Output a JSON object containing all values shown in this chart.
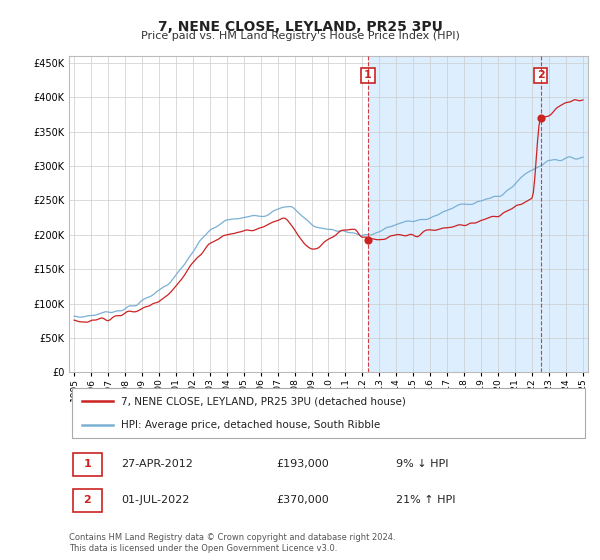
{
  "title": "7, NENE CLOSE, LEYLAND, PR25 3PU",
  "subtitle": "Price paid vs. HM Land Registry's House Price Index (HPI)",
  "ytick_vals": [
    0,
    50000,
    100000,
    150000,
    200000,
    250000,
    300000,
    350000,
    400000,
    450000
  ],
  "ylim": [
    0,
    460000
  ],
  "year_start": 1995,
  "year_end": 2025,
  "hpi_color": "#7ab0d4",
  "price_color": "#cc2222",
  "annotation_box_color": "#cc2222",
  "sale1_date_num": 2012.32,
  "sale1_price": 193000,
  "sale2_date_num": 2022.5,
  "sale2_price": 370000,
  "legend_label_price": "7, NENE CLOSE, LEYLAND, PR25 3PU (detached house)",
  "legend_label_hpi": "HPI: Average price, detached house, South Ribble",
  "table_row1": [
    "1",
    "27-APR-2012",
    "£193,000",
    "9% ↓ HPI"
  ],
  "table_row2": [
    "2",
    "01-JUL-2022",
    "£370,000",
    "21% ↑ HPI"
  ],
  "footnote1": "Contains HM Land Registry data © Crown copyright and database right 2024.",
  "footnote2": "This data is licensed under the Open Government Licence v3.0.",
  "plot_bg": "#ffffff",
  "shade_bg": "#ddeeff",
  "grid_color": "#cccccc",
  "fig_bg": "#ffffff"
}
